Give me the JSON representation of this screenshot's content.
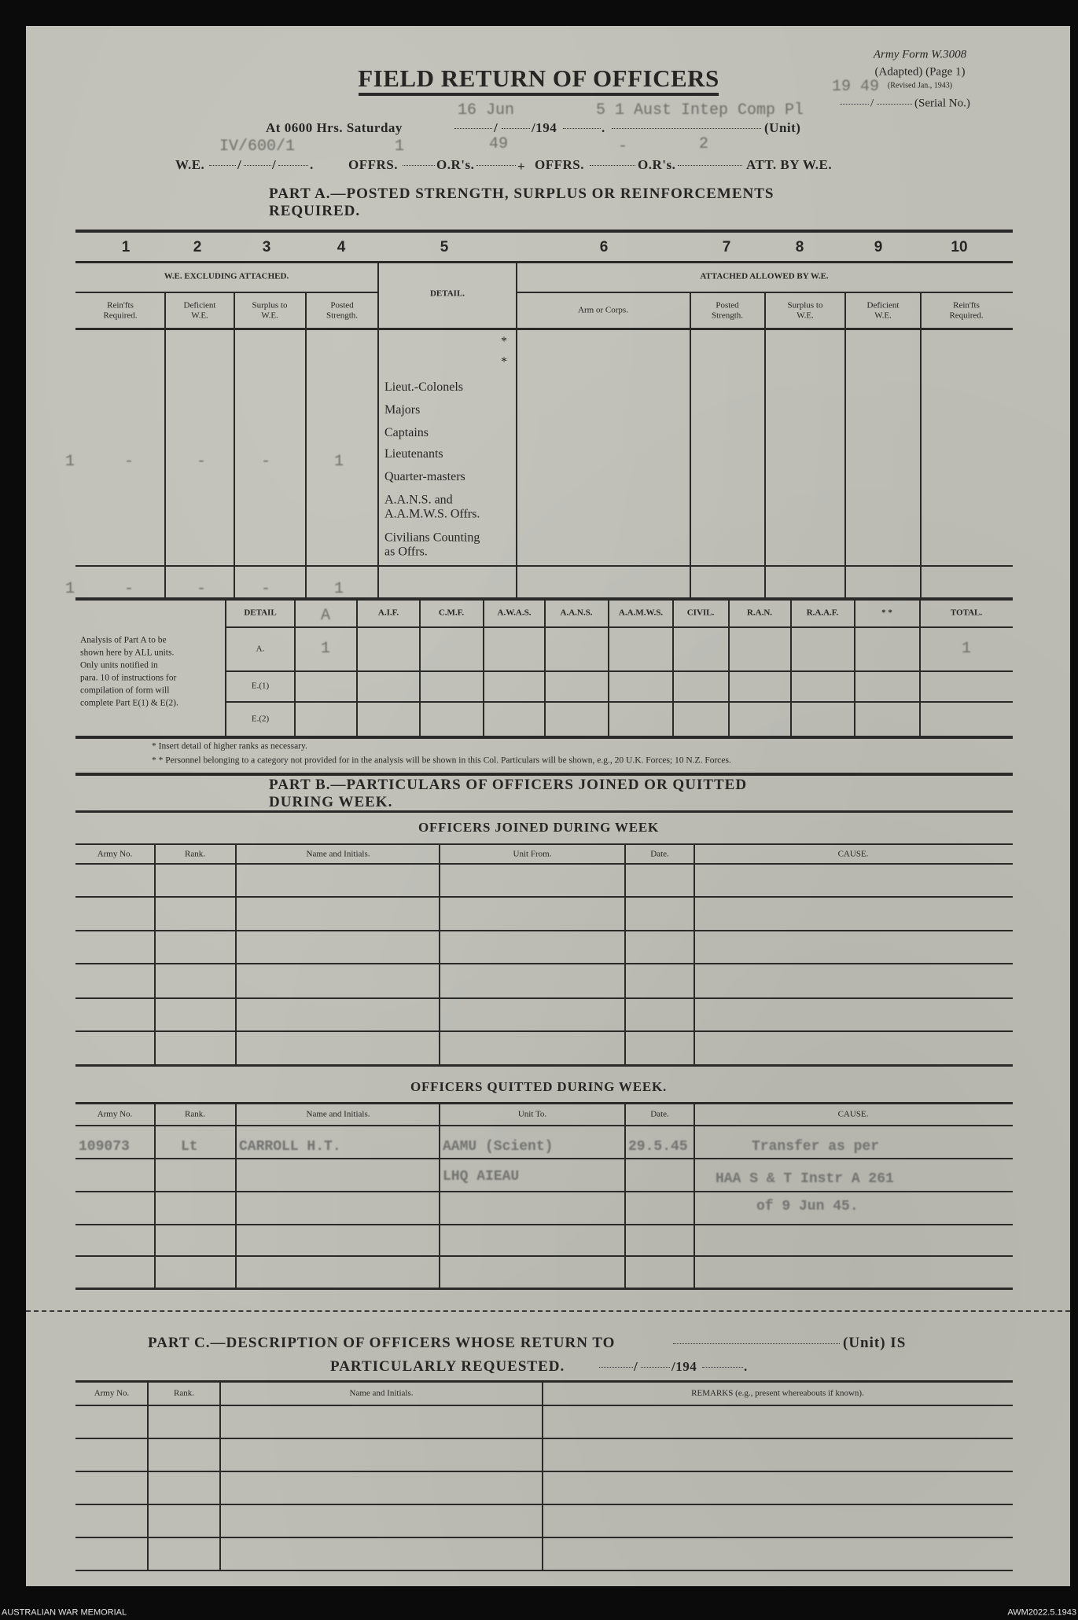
{
  "header": {
    "form_id": "Army Form W.3008",
    "adapted": "(Adapted) (Page 1)",
    "revised": "(Revised Jan., 1943)",
    "serial_slash": "/",
    "serial_label": "(Serial No.)",
    "serial_typed": "19 49",
    "title": "FIELD RETURN OF OFFICERS",
    "at_label": "At 0600 Hrs. Saturday",
    "slash": "/",
    "year_label": "/194",
    "period": ".",
    "unit_label": "(Unit)",
    "typed_date": "16 Jun",
    "typed_year": "5",
    "typed_unit": "1 Aust Intep Comp Pl",
    "we_label": "W.E.",
    "offrs_label": "OFFRS.",
    "ors_label": "O.R's.",
    "plus": "+",
    "att_label": "ATT. BY W.E.",
    "typed_we": "IV/600/1",
    "typed_offrs": "1",
    "typed_ors": "49",
    "typed_att_offrs": "-",
    "typed_att_ors": "2"
  },
  "part_a": {
    "heading": "PART A.—POSTED STRENGTH, SURPLUS OR REINFORCEMENTS REQUIRED.",
    "column_numbers": [
      "1",
      "2",
      "3",
      "4",
      "5",
      "6",
      "7",
      "8",
      "9",
      "10"
    ],
    "group_we": "W.E. EXCLUDING ATTACHED.",
    "group_attached": "ATTACHED ALLOWED BY W.E.",
    "detail_header": "DETAIL.",
    "sub_headers": [
      "Rein'fts\nRequired.",
      "Deficient\nW.E.",
      "Surplus to\nW.E.",
      "Posted\nStrength.",
      "Arm or Corps.",
      "Posted\nStrength.",
      "Surplus to\nW.E.",
      "Deficient\nW.E.",
      "Rein'fts\nRequired."
    ],
    "asterisks": [
      "*",
      "*"
    ],
    "detail_rows": [
      "Lieut.-Colonels",
      "Majors",
      "Captains",
      "Lieutenants",
      "Quarter-masters",
      "A.A.N.S. and\n   A.A.M.W.S. Offrs.",
      "Civilians Counting\n   as Offrs."
    ],
    "typed_lieutenants": [
      "1",
      "-",
      "-",
      "-",
      "1"
    ],
    "typed_totals": [
      "1",
      "-",
      "-",
      "-",
      "1"
    ]
  },
  "analysis": {
    "note_lines": [
      "Analysis of Part A to be",
      "shown here by ALL units.",
      "Only units notified in",
      "para. 10 of instructions for",
      "compilation of form will",
      "complete Part E(1) & E(2)."
    ],
    "headers": [
      "DETAIL",
      "A.I.F.",
      "C.M.F.",
      "A.W.A.S.",
      "A.A.N.S.",
      "A.A.M.W.S.",
      "CIVIL.",
      "R.A.N.",
      "R.A.A.F.",
      "* *",
      "TOTAL."
    ],
    "typed_header": "A",
    "rows": [
      "A.",
      "E.(1)",
      "E.(2)"
    ],
    "typed_row_a": "1",
    "typed_total_a": "1"
  },
  "footnotes": [
    "* Insert detail of higher ranks as necessary.",
    "* * Personnel belonging to a category not provided for in the analysis will be shown in this Col.  Particulars will be shown, e.g., 20 U.K. Forces; 10 N.Z. Forces."
  ],
  "part_b": {
    "heading": "PART B.—PARTICULARS OF OFFICERS JOINED OR QUITTED DURING WEEK.",
    "joined_title": "OFFICERS JOINED DURING WEEK",
    "joined_columns": [
      "Army No.",
      "Rank.",
      "Name and Initials.",
      "Unit From.",
      "Date.",
      "CAUSE."
    ],
    "quitted_title": "OFFICERS QUITTED DURING WEEK.",
    "quitted_columns": [
      "Army No.",
      "Rank.",
      "Name and Initials.",
      "Unit To.",
      "Date.",
      "CAUSE."
    ],
    "quitted_entry": {
      "army_no": "109073",
      "rank": "Lt",
      "name": "CARROLL H.T.",
      "unit_to": [
        "AAMU (Scient)",
        "LHQ AIEAU"
      ],
      "date": "29.5.45",
      "cause": [
        "Transfer as per",
        "HAA S & T Instr A 261",
        "of 9 Jun 45."
      ]
    }
  },
  "part_c": {
    "heading": "PART C.—DESCRIPTION OF OFFICERS WHOSE RETURN TO",
    "unit_is": "(Unit) IS",
    "line2": "PARTICULARLY REQUESTED.",
    "year": "/194",
    "columns": [
      "Army No.",
      "Rank.",
      "Name and Initials.",
      "REMARKS (e.g., present whereabouts if known)."
    ]
  },
  "footer": {
    "left": "AUSTRALIAN WAR MEMORIAL",
    "right": "AWM2022.5.1943"
  }
}
